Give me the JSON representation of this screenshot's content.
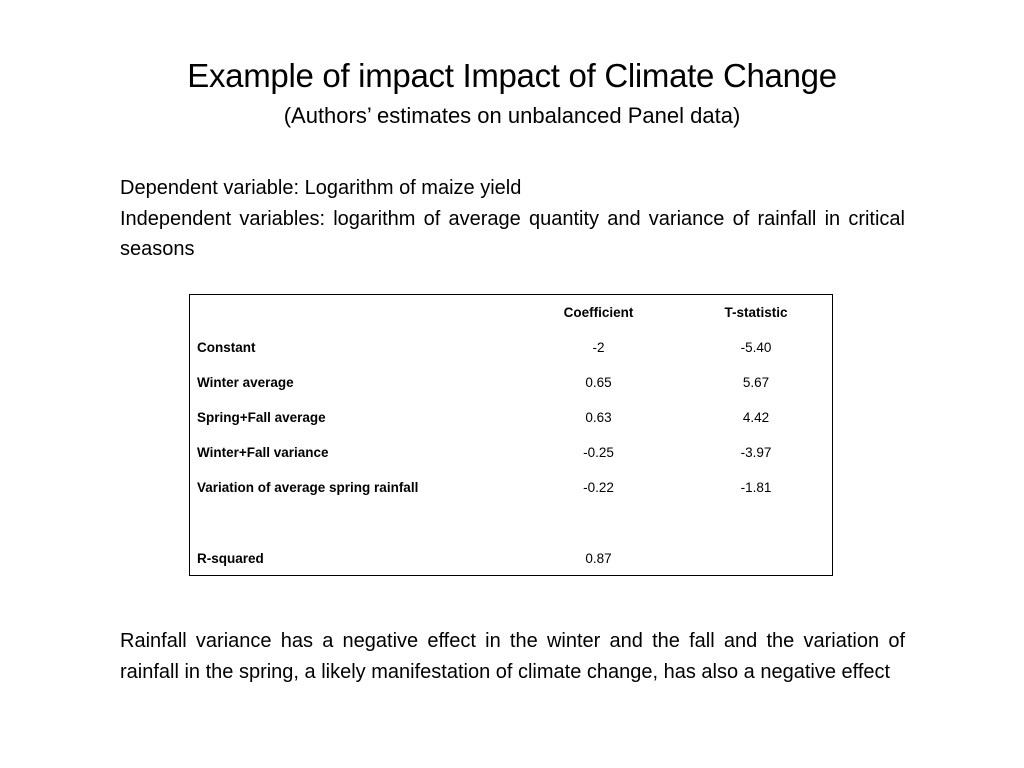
{
  "slide": {
    "title": "Example of impact Impact of Climate Change",
    "subtitle": "(Authors’ estimates on unbalanced Panel data)",
    "intro": {
      "dependent": "Dependent variable: Logarithm of maize yield",
      "independent": "Independent variables: logarithm of average quantity and variance of rainfall in critical seasons"
    },
    "table": {
      "headers": {
        "variable": "",
        "coefficient": "Coefficient",
        "t_statistic": "T-statistic"
      },
      "rows": [
        {
          "variable": "Constant",
          "coefficient": "-2",
          "t_statistic": "-5.40"
        },
        {
          "variable": "Winter average",
          "coefficient": "0.65",
          "t_statistic": "5.67"
        },
        {
          "variable": "Spring+Fall average",
          "coefficient": "0.63",
          "t_statistic": "4.42"
        },
        {
          "variable": "Winter+Fall variance",
          "coefficient": "-0.25",
          "t_statistic": "-3.97"
        },
        {
          "variable": "Variation of average spring rainfall",
          "coefficient": "-0.22",
          "t_statistic": "-1.81"
        }
      ],
      "r_squared": {
        "variable": "R-squared",
        "coefficient": "0.87",
        "t_statistic": ""
      }
    },
    "conclusion": "Rainfall variance has a negative effect in the winter and the fall and the variation of rainfall in the spring,  a likely  manifestation of climate change, has also a negative effect"
  }
}
